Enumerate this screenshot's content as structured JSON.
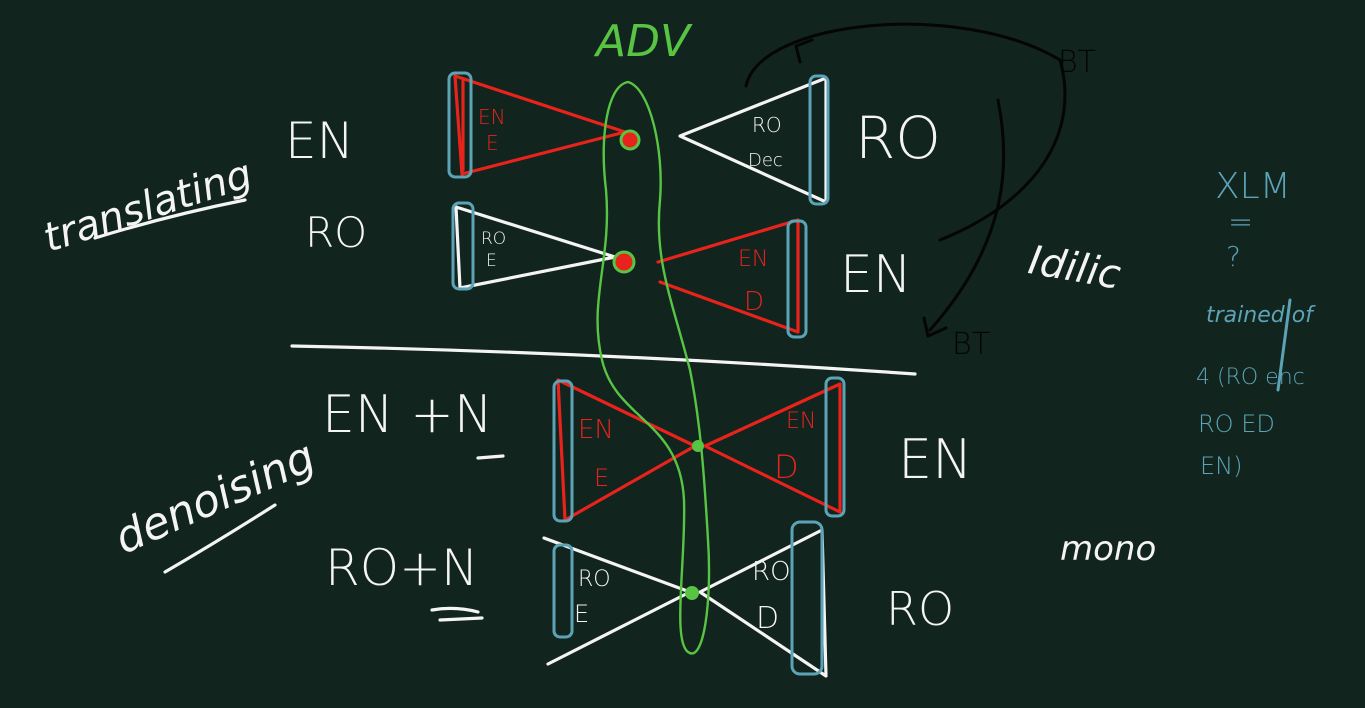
{
  "colors": {
    "background": "#11241e",
    "white_ink": "#f4f4f4",
    "red_ink": "#e8231c",
    "green_ink": "#58c443",
    "blue_ink": "#5da3b6",
    "black_ink": "#050505"
  },
  "labels": {
    "adv": "ADV",
    "bt_top": "BT",
    "bt_bottom": "BT",
    "translating": "translating",
    "denoising": "denoising",
    "en_row1_left": "EN",
    "ro_row2_left": "RO",
    "ro_row1_right": "RO",
    "en_row2_right": "EN",
    "en_n_row3_left": "EN +N",
    "en_row3_right": "EN",
    "ro_n_row4_left": "RO+N",
    "ro_row4_right": "RO",
    "idilic": "Idilic",
    "mono": "mono",
    "side_note": [
      "XLM",
      "=",
      "?",
      "trained of",
      "4 (RO enc",
      "RO ED",
      "EN)"
    ]
  },
  "blocks": {
    "row1_encoder": [
      "EN",
      "E"
    ],
    "row1_decoder": [
      "RO",
      "Dec"
    ],
    "row2_encoder": [
      "RO",
      "E"
    ],
    "row2_decoder": [
      "EN",
      "D"
    ],
    "row3_encoder": [
      "EN",
      "E"
    ],
    "row3_decoder": [
      "EN",
      "D"
    ],
    "row4_encoder": [
      "RO",
      "E"
    ],
    "row4_decoder": [
      "RO",
      "D"
    ]
  }
}
